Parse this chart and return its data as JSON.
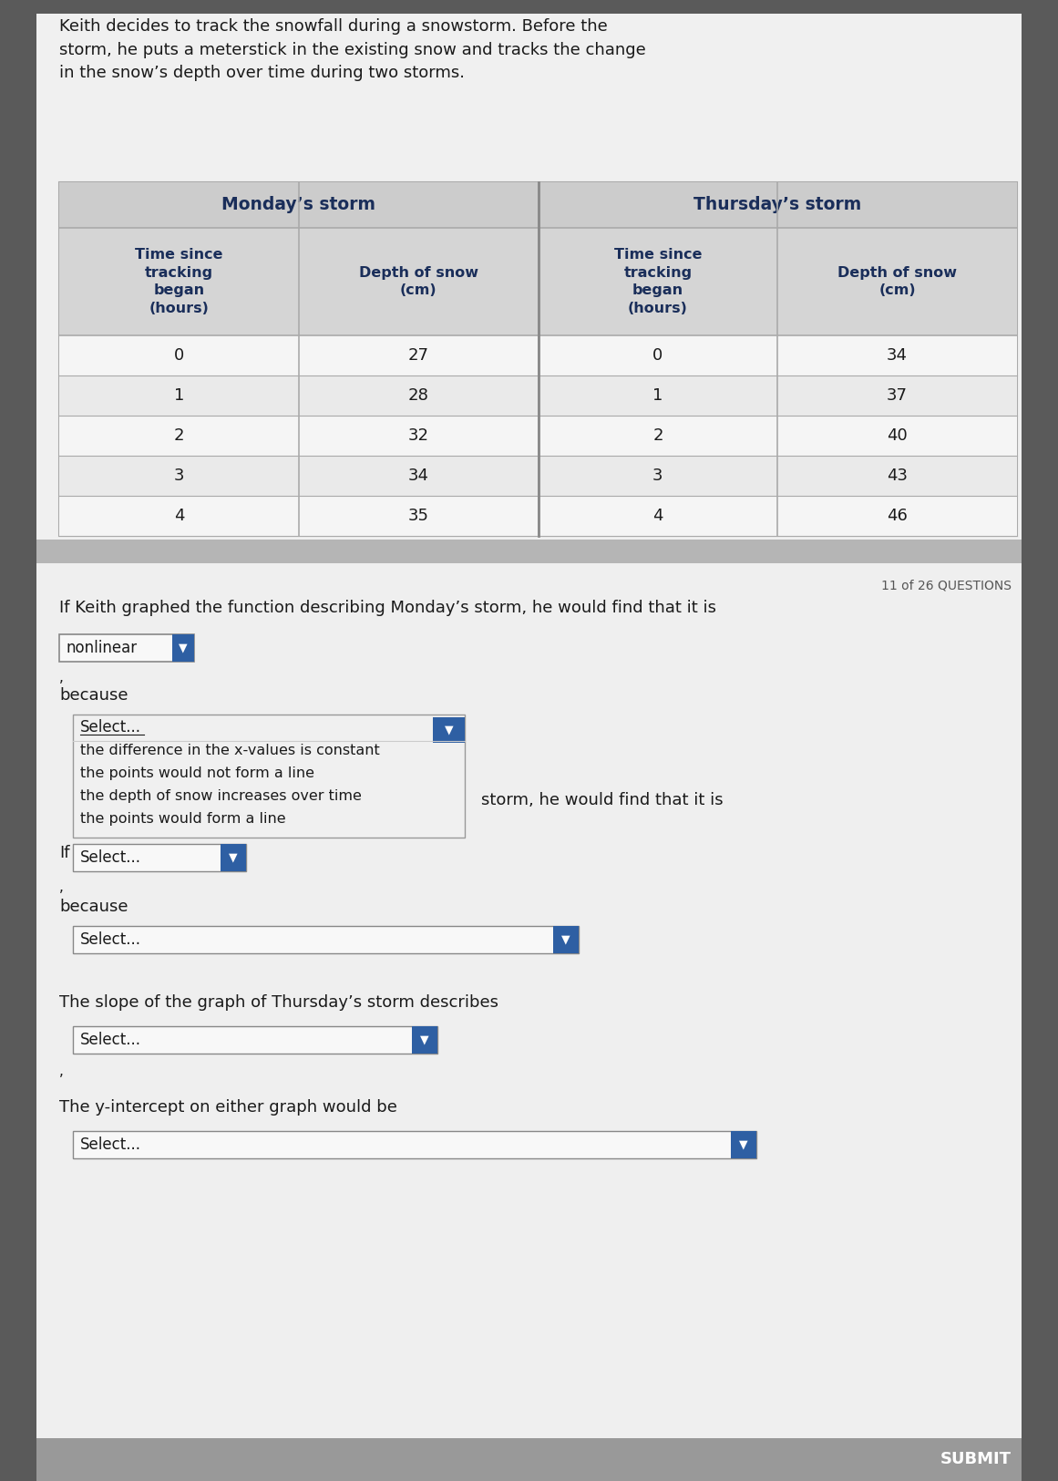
{
  "bg_outer": "#5a5a5a",
  "bg_inner": "#f0f0f0",
  "bg_white": "#ffffff",
  "intro_text": "Keith decides to track the snowfall during a snowstorm. Before the\nstorm, he puts a meterstick in the existing snow and tracks the change\nin the snow’s depth over time during two storms.",
  "monday_header": "Monday’s storm",
  "thursday_header": "Thursday’s storm",
  "col1_header": "Time since\ntracking\nbegan\n(hours)",
  "col2_header": "Depth of snow\n(cm)",
  "col3_header": "Time since\ntracking\nbegan\n(hours)",
  "col4_header": "Depth of snow\n(cm)",
  "monday_time": [
    0,
    1,
    2,
    3,
    4
  ],
  "monday_depth": [
    27,
    28,
    32,
    34,
    35
  ],
  "thursday_time": [
    0,
    1,
    2,
    3,
    4
  ],
  "thursday_depth": [
    34,
    37,
    40,
    43,
    46
  ],
  "question_number": "11 of 26 QUESTIONS",
  "q1_text": "If Keith graphed the function describing Monday’s storm, he would find that it is",
  "nonlinear_box": "nonlinear",
  "because1": "because",
  "dropdown1_selected": "Select...",
  "dropdown1_options": [
    "the difference in the x-values is constant",
    "the points would not form a line",
    "the depth of snow increases over time",
    "the points would form a line"
  ],
  "if_storm_text": "storm, he would find that it is",
  "if_prefix": "If",
  "select2_box": "Select...",
  "because2": "because",
  "select3_box": "Select...",
  "slope_text": "The slope of the graph of Thursday’s storm describes",
  "select4_box": "Select...",
  "yintercept_text": "The y-intercept on either graph would be",
  "select5_box": "Select...",
  "submit_text": "SUBMIT",
  "header_text_color": "#1a2e5a",
  "body_text_color": "#1a1a1a",
  "dropdown_arrow_color": "#2e5fa3"
}
